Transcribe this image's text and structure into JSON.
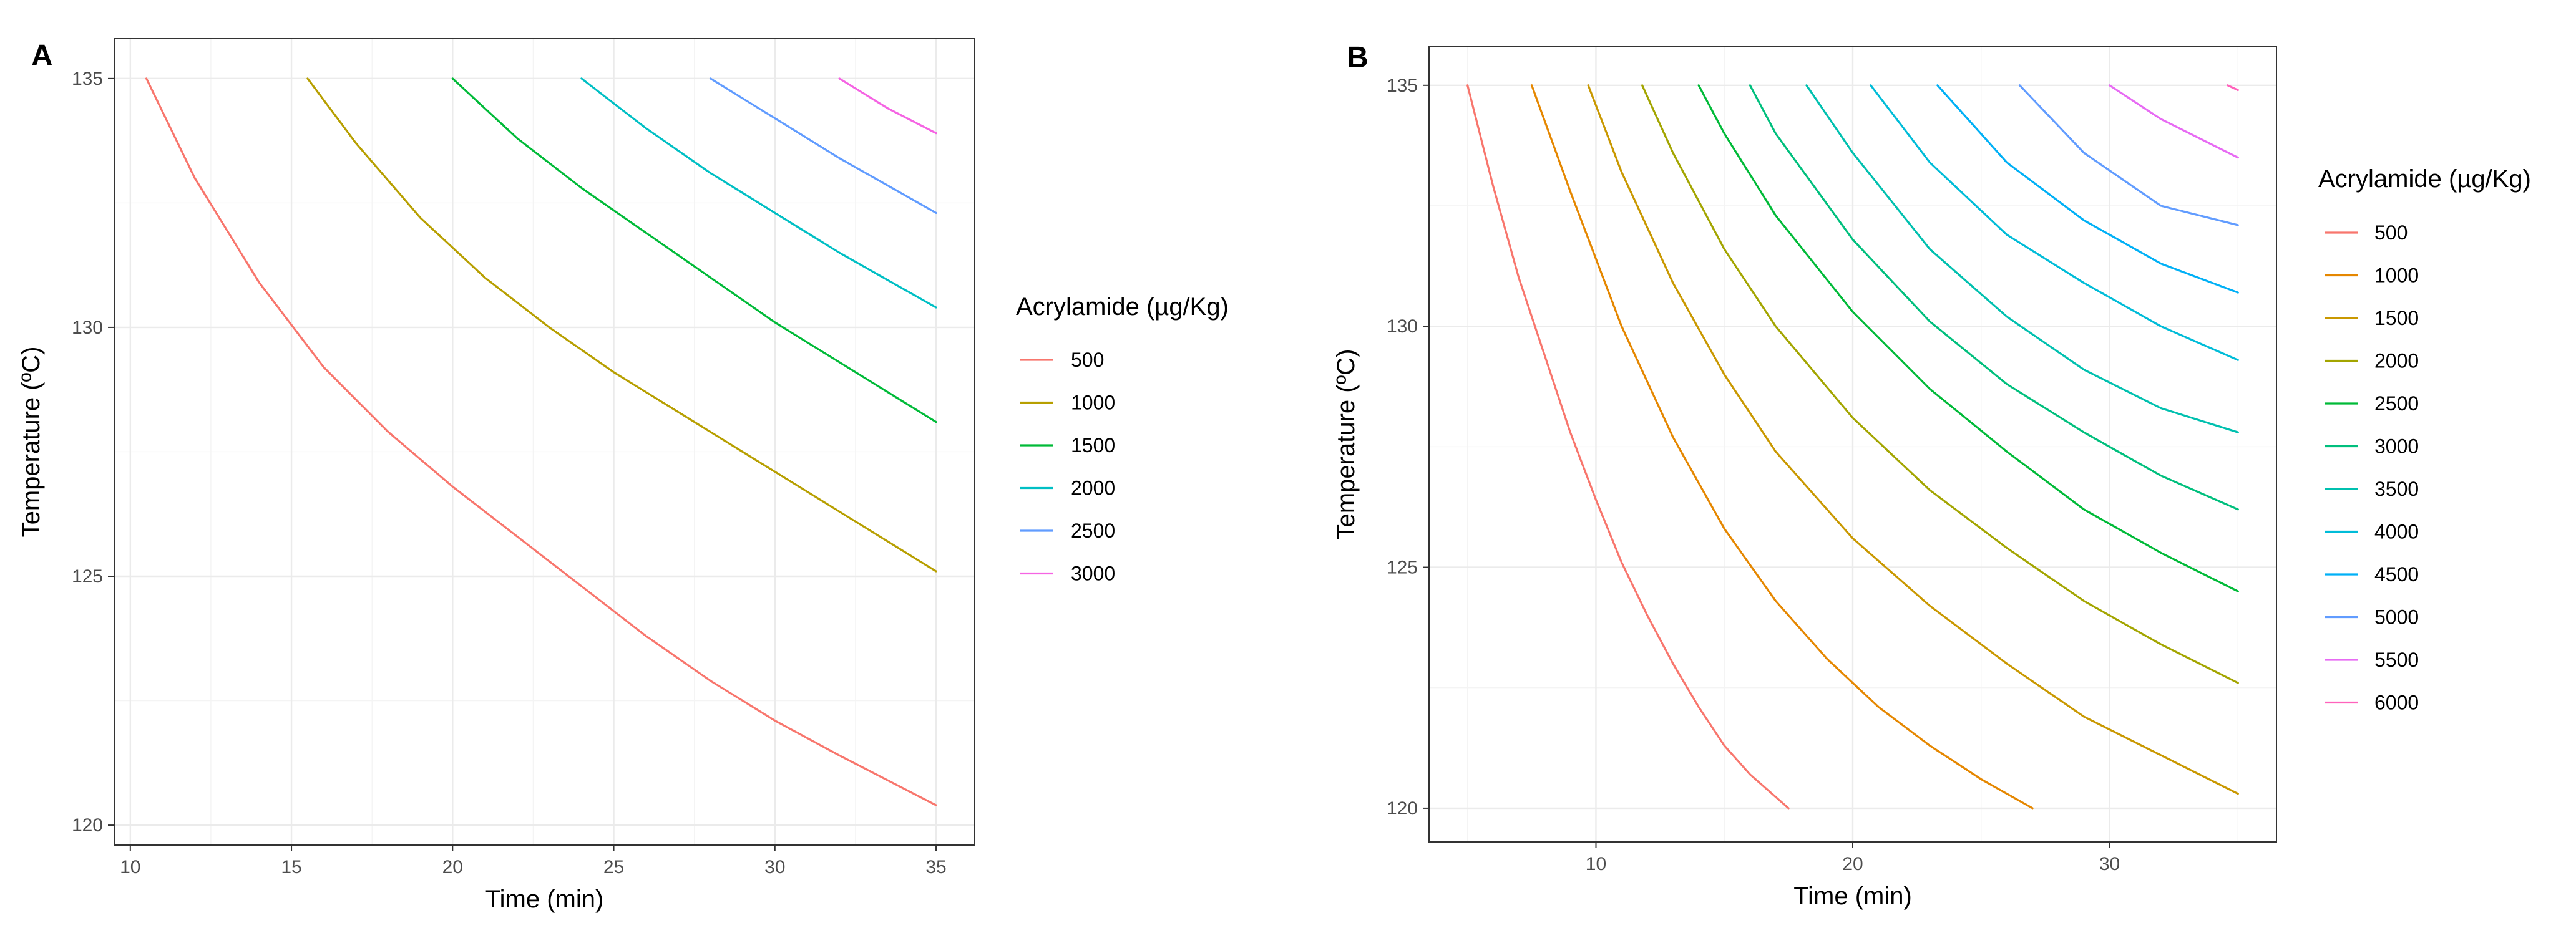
{
  "chart_data": [
    {
      "panel": "A",
      "type": "line",
      "chart_kind": "contour",
      "xlabel": "Time (min)",
      "ylabel": "Temperature (ºC)",
      "xlim": [
        9.5,
        36.2
      ],
      "ylim": [
        119.6,
        135.8
      ],
      "xticks": [
        10,
        15,
        20,
        25,
        30,
        35
      ],
      "yticks": [
        120,
        125,
        130,
        135
      ],
      "grid": true,
      "legend_title": "Acrylamide (µg/Kg)",
      "series": [
        {
          "name": "500",
          "color": "#F8766D",
          "x": [
            10.5,
            12,
            14,
            16,
            18,
            20,
            22,
            24,
            26,
            28,
            30,
            32,
            35
          ],
          "y": [
            135.0,
            133.0,
            130.9,
            129.2,
            127.9,
            126.8,
            125.8,
            124.8,
            123.8,
            122.9,
            122.1,
            121.4,
            120.4
          ]
        },
        {
          "name": "1000",
          "color": "#B79F00",
          "x": [
            15.5,
            17,
            19,
            21,
            23,
            25,
            27,
            29,
            31,
            33,
            35
          ],
          "y": [
            135.0,
            133.7,
            132.2,
            131.0,
            130.0,
            129.1,
            128.3,
            127.5,
            126.7,
            125.9,
            125.1
          ]
        },
        {
          "name": "1500",
          "color": "#00BA38",
          "x": [
            20,
            22,
            24,
            26,
            28,
            30,
            32,
            35
          ],
          "y": [
            135.0,
            133.8,
            132.8,
            131.9,
            131.0,
            130.1,
            129.3,
            128.1
          ]
        },
        {
          "name": "2000",
          "color": "#00BFC4",
          "x": [
            24,
            26,
            28,
            30,
            32,
            35
          ],
          "y": [
            135.0,
            134.0,
            133.1,
            132.3,
            131.5,
            130.4
          ]
        },
        {
          "name": "2500",
          "color": "#619CFF",
          "x": [
            28,
            30,
            32,
            35
          ],
          "y": [
            135.0,
            134.2,
            133.4,
            132.3
          ]
        },
        {
          "name": "3000",
          "color": "#F564E3",
          "x": [
            32,
            33.5,
            35
          ],
          "y": [
            135.0,
            134.4,
            133.9
          ]
        }
      ]
    },
    {
      "panel": "B",
      "type": "line",
      "chart_kind": "contour",
      "xlabel": "Time (min)",
      "ylabel": "Temperature (ºC)",
      "xlim": [
        3.5,
        36.5
      ],
      "ylim": [
        119.3,
        135.8
      ],
      "xticks": [
        10,
        20,
        30
      ],
      "yticks": [
        120,
        125,
        130,
        135
      ],
      "grid": true,
      "legend_title": "Acrylamide (µg/Kg)",
      "series": [
        {
          "name": "500",
          "color": "#F8766D",
          "x": [
            5,
            6,
            7,
            8,
            9,
            10,
            11,
            12,
            13,
            14,
            15,
            16,
            17.5
          ],
          "y": [
            135.0,
            132.9,
            131.0,
            129.4,
            127.8,
            126.4,
            125.1,
            124.0,
            123.0,
            122.1,
            121.3,
            120.7,
            120.0
          ]
        },
        {
          "name": "1000",
          "color": "#E58700",
          "x": [
            7.5,
            9,
            11,
            13,
            15,
            17,
            19,
            21,
            23,
            25,
            27
          ],
          "y": [
            135.0,
            132.8,
            130.0,
            127.7,
            125.8,
            124.3,
            123.1,
            122.1,
            121.3,
            120.6,
            120.0
          ]
        },
        {
          "name": "1500",
          "color": "#C99800",
          "x": [
            9.7,
            11,
            13,
            15,
            17,
            20,
            23,
            26,
            29,
            32,
            35
          ],
          "y": [
            135.0,
            133.2,
            130.9,
            129.0,
            127.4,
            125.6,
            124.2,
            123.0,
            121.9,
            121.1,
            120.3
          ]
        },
        {
          "name": "2000",
          "color": "#A3A500",
          "x": [
            11.8,
            13,
            15,
            17,
            20,
            23,
            26,
            29,
            32,
            35
          ],
          "y": [
            135.0,
            133.6,
            131.6,
            130.0,
            128.1,
            126.6,
            125.4,
            124.3,
            123.4,
            122.6
          ]
        },
        {
          "name": "2500",
          "color": "#00BA38",
          "x": [
            14,
            15,
            17,
            20,
            23,
            26,
            29,
            32,
            35
          ],
          "y": [
            135.0,
            134.0,
            132.3,
            130.3,
            128.7,
            127.4,
            126.2,
            125.3,
            124.5
          ]
        },
        {
          "name": "3000",
          "color": "#00BF7D",
          "x": [
            16,
            17,
            20,
            23,
            26,
            29,
            32,
            35
          ],
          "y": [
            135.0,
            134.0,
            131.8,
            130.1,
            128.8,
            127.8,
            126.9,
            126.2
          ]
        },
        {
          "name": "3500",
          "color": "#00C0AF",
          "x": [
            18.2,
            20,
            23,
            26,
            29,
            32,
            35
          ],
          "y": [
            135.0,
            133.6,
            131.6,
            130.2,
            129.1,
            128.3,
            127.8
          ]
        },
        {
          "name": "4000",
          "color": "#00BCD8",
          "x": [
            20.7,
            23,
            26,
            29,
            32,
            35
          ],
          "y": [
            135.0,
            133.4,
            131.9,
            130.9,
            130.0,
            129.3
          ]
        },
        {
          "name": "4500",
          "color": "#00B0F6",
          "x": [
            23.3,
            26,
            29,
            32,
            35
          ],
          "y": [
            135.0,
            133.4,
            132.2,
            131.3,
            130.7
          ]
        },
        {
          "name": "5000",
          "color": "#619CFF",
          "x": [
            26.5,
            29,
            32,
            35
          ],
          "y": [
            135.0,
            133.6,
            132.5,
            132.1
          ]
        },
        {
          "name": "5500",
          "color": "#E76BF3",
          "x": [
            30,
            32,
            35
          ],
          "y": [
            135.0,
            134.3,
            133.5
          ]
        },
        {
          "name": "6000",
          "color": "#FF62BC",
          "x": [
            34.6,
            35
          ],
          "y": [
            135.0,
            134.9
          ]
        }
      ]
    }
  ]
}
